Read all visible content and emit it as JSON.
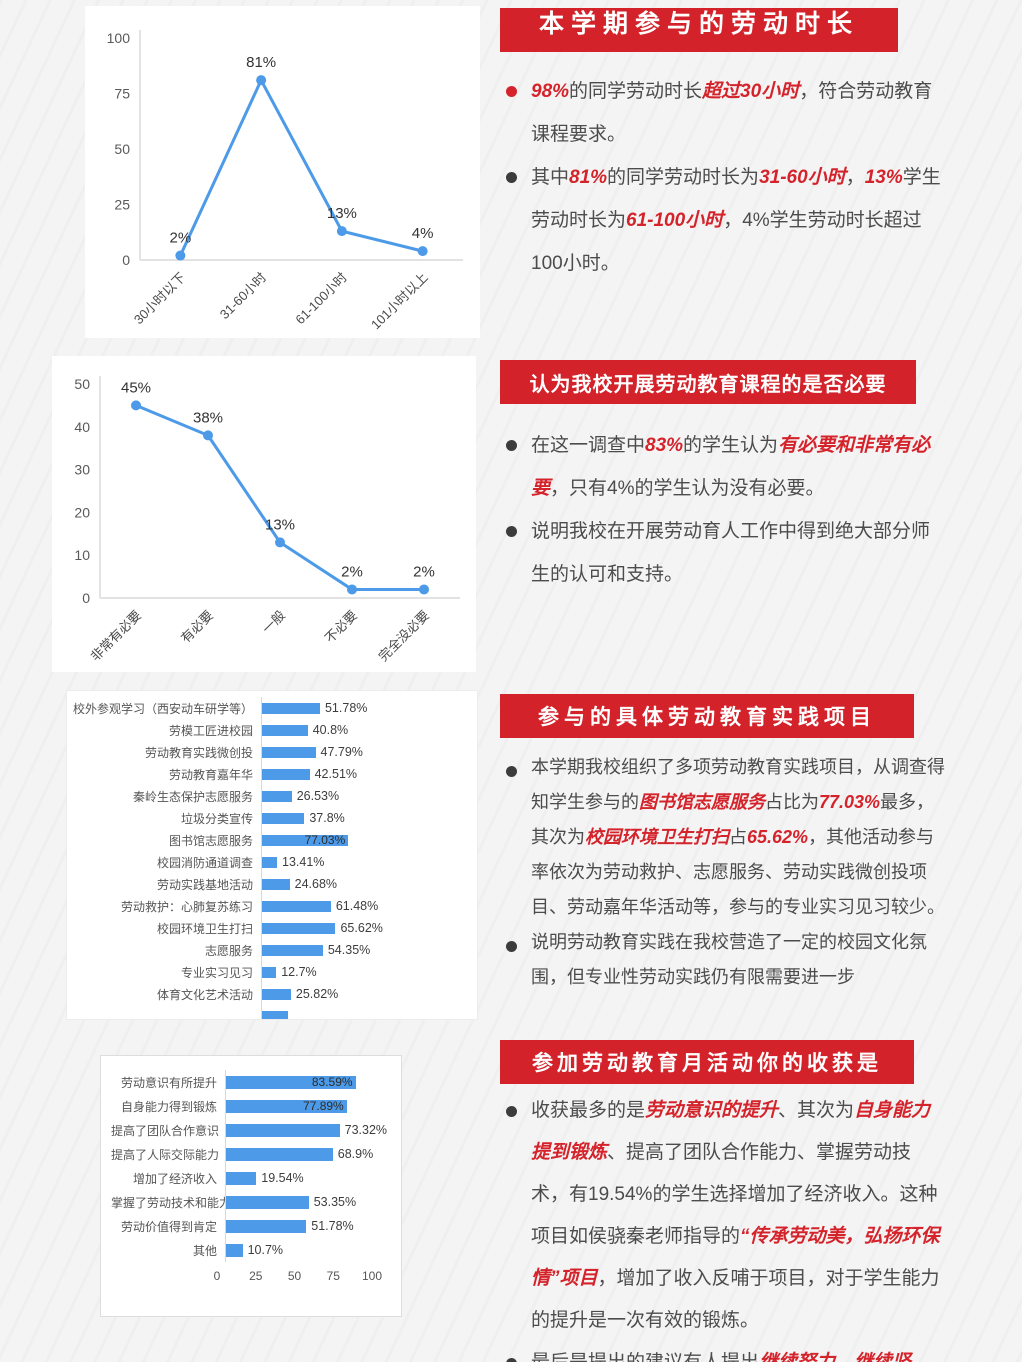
{
  "colors": {
    "accent_red": "#d3222a",
    "emphasis_red": "#d4232a",
    "chart_blue": "#4c9ae8",
    "body_text": "#4c4c4c"
  },
  "sections": [
    {
      "title": "本学期参与的劳动时长",
      "bullets": [
        {
          "dot": "red",
          "segments": [
            {
              "t": "98%",
              "em": true
            },
            {
              "t": "的同学劳动时长"
            },
            {
              "t": "超过30小时",
              "em": true
            },
            {
              "t": "，符合劳动教育课程要求。"
            }
          ]
        },
        {
          "dot": "dark",
          "segments": [
            {
              "t": "其中"
            },
            {
              "t": "81%",
              "em": true
            },
            {
              "t": "的同学劳动时长为"
            },
            {
              "t": "31-60小时",
              "em": true
            },
            {
              "t": "，"
            },
            {
              "t": "13%",
              "em": true
            },
            {
              "t": "学生劳动时长为"
            },
            {
              "t": "61-100小时",
              "em": true
            },
            {
              "t": "，4%学生劳动时长超过100小时。"
            }
          ]
        }
      ]
    },
    {
      "title": "认为我校开展劳动教育课程的是否必要",
      "bullets": [
        {
          "dot": "dark",
          "segments": [
            {
              "t": "在这一调查中"
            },
            {
              "t": "83%",
              "em": true
            },
            {
              "t": "的学生认为"
            },
            {
              "t": "有必要和非常有必要",
              "em": true
            },
            {
              "t": "，只有4%的学生认为没有必要。"
            }
          ]
        },
        {
          "dot": "dark",
          "segments": [
            {
              "t": "说明我校在开展劳动育人工作中得到绝大部分师生的认可和支持。"
            }
          ]
        }
      ]
    },
    {
      "title": "参与的具体劳动教育实践项目",
      "bullets": [
        {
          "dot": "dark",
          "segments": [
            {
              "t": "本学期我校组织了多项劳动教育实践项目，从调查得知学生参与的"
            },
            {
              "t": "图书馆志愿服务",
              "em": true
            },
            {
              "t": "占比为"
            },
            {
              "t": "77.03%",
              "em": true
            },
            {
              "t": "最多，其次为"
            },
            {
              "t": "校园环境卫生打扫",
              "em": true
            },
            {
              "t": "占"
            },
            {
              "t": "65.62%",
              "em": true
            },
            {
              "t": "，其他活动参与率依次为劳动救护、志愿服务、劳动实践微创投项目、劳动嘉年华活动等，参与的专业实习见习较少。"
            }
          ]
        },
        {
          "dot": "dark",
          "segments": [
            {
              "t": "说明劳动教育实践在我校营造了一定的校园文化氛围，但专业性劳动实践仍有限需要进一步"
            }
          ]
        }
      ]
    },
    {
      "title": "参加劳动教育月活动你的收获是",
      "bullets": [
        {
          "dot": "dark",
          "segments": [
            {
              "t": "收获最多的是"
            },
            {
              "t": "劳动意识的提升",
              "em": true
            },
            {
              "t": "、其次为"
            },
            {
              "t": "自身能力提到锻炼",
              "em": true
            },
            {
              "t": "、提高了团队合作能力、掌握劳动技术，有19.54%的学生选择增加了经济收入。这种项目如侯骁秦老师指导的"
            },
            {
              "t": "“传承劳动美，弘扬环保情”项目",
              "em": true
            },
            {
              "t": "，增加了收入反哺于项目，对于学生能力的提升是一次有效的锻炼。"
            }
          ]
        },
        {
          "dot": "dark",
          "segments": [
            {
              "t": "最后是提出的建议有人提出"
            },
            {
              "t": "继续努力",
              "em": true
            },
            {
              "t": "、"
            },
            {
              "t": "继续坚",
              "em": true
            }
          ]
        }
      ]
    }
  ],
  "chart_data": [
    {
      "type": "line",
      "title": "本学期参与的劳动时长",
      "categories": [
        "30小时以下",
        "31-60小时",
        "61-100小时",
        "101小时以上"
      ],
      "values": [
        2,
        81,
        13,
        4
      ],
      "point_labels": [
        "2%",
        "81%",
        "13%",
        "4%"
      ],
      "ylim": [
        0,
        100
      ],
      "yticks": [
        0,
        25,
        50,
        75,
        100
      ],
      "grid": false,
      "legend": "none",
      "line_color": "#4c9ae8"
    },
    {
      "type": "line",
      "title": "认为我校开展劳动教育课程的是否必要",
      "categories": [
        "非常有必要",
        "有必要",
        "一般",
        "不必要",
        "完全没必要"
      ],
      "values": [
        45,
        38,
        13,
        2,
        2
      ],
      "point_labels": [
        "45%",
        "38%",
        "13%",
        "2%",
        "2%"
      ],
      "ylim": [
        0,
        50
      ],
      "yticks": [
        0,
        10,
        20,
        30,
        40,
        50
      ],
      "grid": false,
      "legend": "none",
      "line_color": "#4c9ae8"
    },
    {
      "type": "bar",
      "orientation": "horizontal",
      "title": "参与的具体劳动教育实践项目",
      "categories": [
        "校外参观学习（西安动车研学等）",
        "劳模工匠进校园",
        "劳动教育实践微创投",
        "劳动教育嘉年华",
        "秦岭生态保护志愿服务",
        "垃圾分类宣传",
        "图书馆志愿服务",
        "校园消防通道调查",
        "劳动实践基地活动",
        "劳动救护：心肺复苏练习",
        "校园环境卫生打扫",
        "志愿服务",
        "专业实习见习",
        "体育文化艺术活动"
      ],
      "values": [
        51.78,
        40.8,
        47.79,
        42.51,
        26.53,
        37.8,
        77.03,
        13.41,
        24.68,
        61.48,
        65.62,
        54.35,
        12.7,
        25.82
      ],
      "value_labels": [
        "51.78%",
        "40.8%",
        "47.79%",
        "42.51%",
        "26.53%",
        "37.8%",
        "77.03%",
        "13.41%",
        "24.68%",
        "61.48%",
        "65.62%",
        "54.35%",
        "12.7%",
        "25.82%"
      ],
      "value_inside_indices": [
        6
      ],
      "clipped_row": {
        "value_approx": 23.5
      },
      "xlim": [
        0,
        100
      ],
      "bar_color": "#4c9ae8"
    },
    {
      "type": "bar",
      "orientation": "horizontal",
      "title": "参加劳动教育月活动你的收获是",
      "categories": [
        "劳动意识有所提升",
        "自身能力得到锻炼",
        "提高了团队合作意识",
        "提高了人际交际能力",
        "增加了经济收入",
        "掌握了劳动技术和能力",
        "劳动价值得到肯定",
        "其他"
      ],
      "values": [
        83.59,
        77.89,
        73.32,
        68.9,
        19.54,
        53.35,
        51.78,
        10.7
      ],
      "value_labels": [
        "83.59%",
        "77.89%",
        "73.32%",
        "68.9%",
        "19.54%",
        "53.35%",
        "51.78%",
        "10.7%"
      ],
      "value_inside_indices": [
        0,
        1
      ],
      "xticks": [
        0,
        25,
        50,
        75,
        100
      ],
      "xlim": [
        0,
        100
      ],
      "bar_color": "#4c9ae8"
    }
  ]
}
